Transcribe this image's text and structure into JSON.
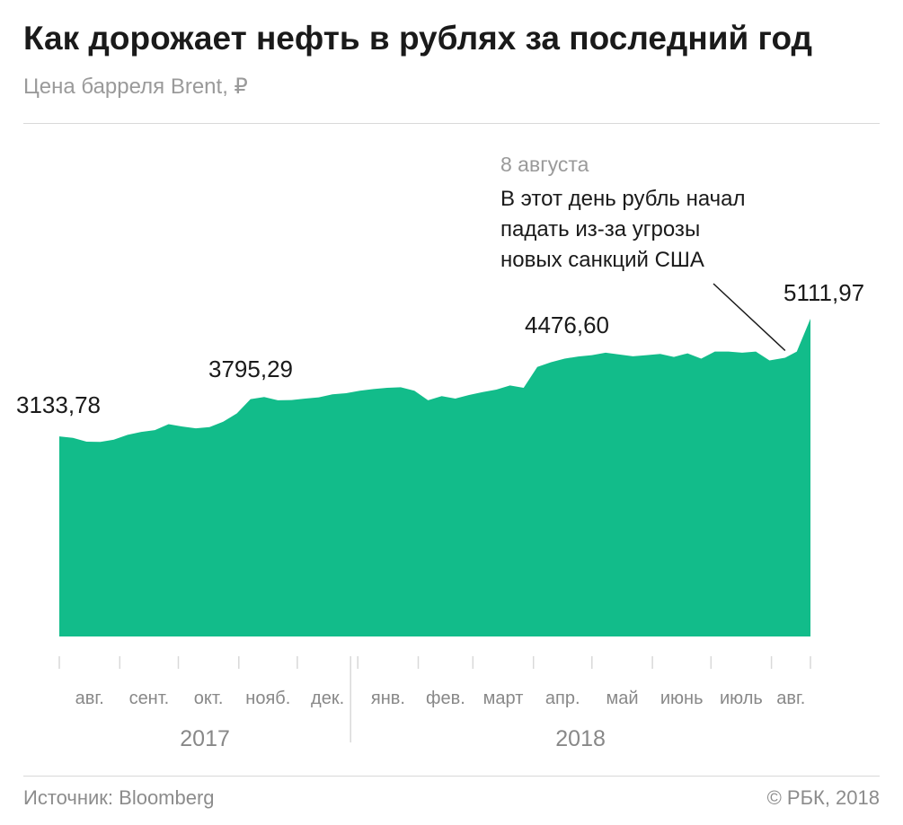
{
  "header": {
    "title": "Как дорожает нефть в рублях за последний год",
    "subtitle": "Цена барреля Brent, ₽"
  },
  "annotation": {
    "date": "8 августа",
    "lines": [
      "В этот день рубль начал",
      "падать из-за угрозы",
      "новых санкций США"
    ]
  },
  "footer": {
    "source": "Источник: Bloomberg",
    "copyright": "© РБК, 2018"
  },
  "colors": {
    "area": "#12bc8a",
    "grid": "#d9d9d9",
    "muted": "#8c8c8c"
  },
  "chart_data": {
    "type": "area",
    "title": "Как дорожает нефть в рублях за последний год",
    "ylabel": "Цена барреля Brent, ₽",
    "ylim": [
      0,
      5500
    ],
    "grid": false,
    "months": [
      "авг.",
      "сент.",
      "окт.",
      "нояб.",
      "дек.",
      "янв.",
      "фев.",
      "март",
      "апр.",
      "май",
      "июнь",
      "июль",
      "авг."
    ],
    "years": [
      "2017",
      "2018"
    ],
    "x": [
      "2017-08-01",
      "2017-08-08",
      "2017-08-15",
      "2017-08-22",
      "2017-08-29",
      "2017-09-05",
      "2017-09-12",
      "2017-09-19",
      "2017-09-26",
      "2017-10-03",
      "2017-10-10",
      "2017-10-17",
      "2017-10-24",
      "2017-10-31",
      "2017-11-07",
      "2017-11-14",
      "2017-11-21",
      "2017-11-28",
      "2017-12-05",
      "2017-12-12",
      "2017-12-19",
      "2017-12-26",
      "2018-01-02",
      "2018-01-09",
      "2018-01-16",
      "2018-01-23",
      "2018-01-30",
      "2018-02-06",
      "2018-02-13",
      "2018-02-20",
      "2018-02-27",
      "2018-03-06",
      "2018-03-13",
      "2018-03-20",
      "2018-03-27",
      "2018-04-03",
      "2018-04-10",
      "2018-04-17",
      "2018-04-24",
      "2018-05-01",
      "2018-05-08",
      "2018-05-15",
      "2018-05-22",
      "2018-05-29",
      "2018-06-05",
      "2018-06-12",
      "2018-06-19",
      "2018-06-26",
      "2018-07-03",
      "2018-07-10",
      "2018-07-17",
      "2018-07-24",
      "2018-07-31",
      "2018-08-08",
      "2018-08-14",
      "2018-08-21"
    ],
    "y": [
      3133.78,
      3110,
      3045,
      3040,
      3080,
      3160,
      3210,
      3240,
      3340,
      3300,
      3270,
      3290,
      3380,
      3520,
      3760,
      3795.29,
      3740,
      3745,
      3770,
      3790,
      3840,
      3860,
      3900,
      3930,
      3950,
      3960,
      3900,
      3740,
      3810,
      3770,
      3830,
      3880,
      3920,
      3990,
      3950,
      4300,
      4380,
      4440,
      4476.6,
      4500,
      4540,
      4510,
      4480,
      4500,
      4520,
      4470,
      4530,
      4440,
      4560,
      4560,
      4540,
      4560,
      4410,
      4455,
      4560,
      5111.97
    ],
    "point_labels": [
      {
        "x": "2017-08-01",
        "text": "3133,78"
      },
      {
        "x": "2017-11-14",
        "text": "3795,29"
      },
      {
        "x": "2018-04-24",
        "text": "4476,60"
      },
      {
        "x": "2018-08-21",
        "text": "5111,97"
      }
    ],
    "annotation_x": "2018-08-08"
  }
}
